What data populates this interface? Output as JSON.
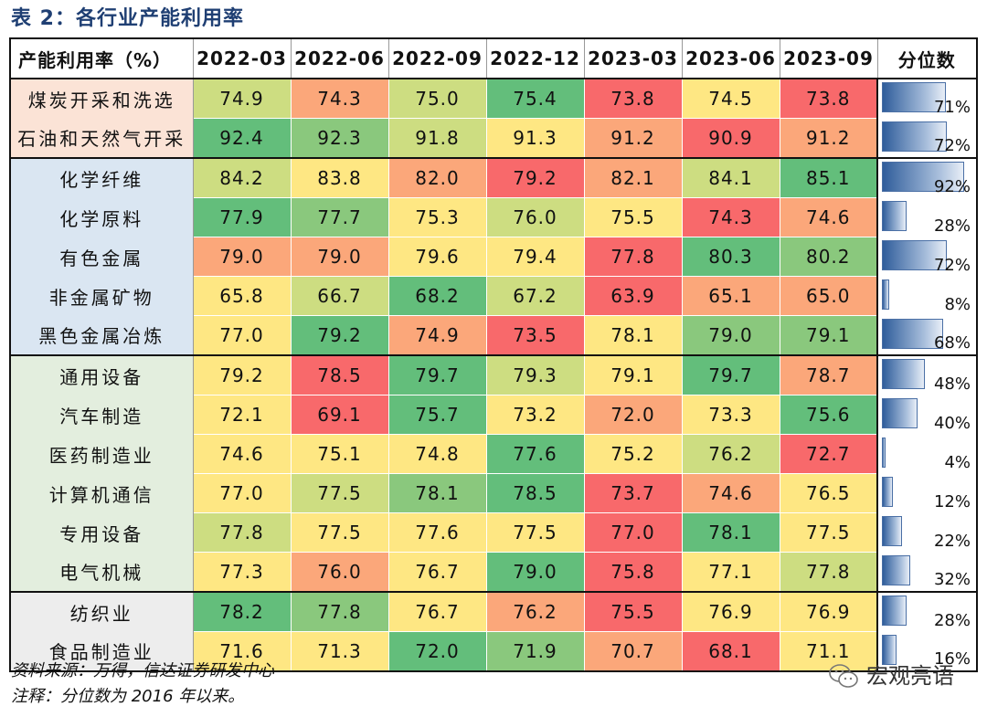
{
  "title": "表 2：各行业产能利用率",
  "header": [
    "产能利用率（%）",
    "2022-03",
    "2022-06",
    "2022-09",
    "2022-12",
    "2023-03",
    "2023-06",
    "2023-09",
    "分位数"
  ],
  "colors": {
    "red": "#f8696b",
    "orange": "#fba77a",
    "yellow": "#fee783",
    "lime": "#cddd81",
    "green": "#8ac87d",
    "dgreen": "#63be7b"
  },
  "groups": [
    {
      "class": "g1",
      "rows": [
        {
          "name": "煤炭开采和洗选",
          "values": [
            "74.9",
            "74.3",
            "75.0",
            "75.4",
            "73.8",
            "74.5",
            "73.8"
          ],
          "colors": [
            "lime",
            "orange",
            "lime",
            "dgreen",
            "red",
            "yellow",
            "red"
          ],
          "pct": "71%",
          "pct_value": 0.71
        },
        {
          "name": "石油和天然气开采",
          "values": [
            "92.4",
            "92.3",
            "91.8",
            "91.3",
            "91.2",
            "90.9",
            "91.2"
          ],
          "colors": [
            "dgreen",
            "green",
            "lime",
            "yellow",
            "orange",
            "red",
            "orange"
          ],
          "pct": "72%",
          "pct_value": 0.72
        }
      ]
    },
    {
      "class": "g2",
      "rows": [
        {
          "name": "化学纤维",
          "values": [
            "84.2",
            "83.8",
            "82.0",
            "79.2",
            "82.1",
            "84.1",
            "85.1"
          ],
          "colors": [
            "lime",
            "yellow",
            "orange",
            "red",
            "orange",
            "lime",
            "dgreen"
          ],
          "pct": "92%",
          "pct_value": 0.92
        },
        {
          "name": "化学原料",
          "values": [
            "77.9",
            "77.7",
            "75.3",
            "76.0",
            "75.5",
            "74.3",
            "74.6"
          ],
          "colors": [
            "dgreen",
            "green",
            "yellow",
            "lime",
            "yellow",
            "red",
            "orange"
          ],
          "pct": "28%",
          "pct_value": 0.28
        },
        {
          "name": "有色金属",
          "values": [
            "79.0",
            "79.0",
            "79.6",
            "79.4",
            "77.8",
            "80.3",
            "80.2"
          ],
          "colors": [
            "orange",
            "orange",
            "yellow",
            "yellow",
            "red",
            "dgreen",
            "green"
          ],
          "pct": "72%",
          "pct_value": 0.72
        },
        {
          "name": "非金属矿物",
          "values": [
            "65.8",
            "66.7",
            "68.2",
            "67.2",
            "63.9",
            "65.1",
            "65.0"
          ],
          "colors": [
            "yellow",
            "lime",
            "dgreen",
            "lime",
            "red",
            "orange",
            "orange"
          ],
          "pct": "8%",
          "pct_value": 0.08
        },
        {
          "name": "黑色金属冶炼",
          "values": [
            "77.0",
            "79.2",
            "74.9",
            "73.5",
            "78.1",
            "79.0",
            "79.1"
          ],
          "colors": [
            "yellow",
            "dgreen",
            "orange",
            "red",
            "yellow",
            "green",
            "green"
          ],
          "pct": "68%",
          "pct_value": 0.68
        }
      ]
    },
    {
      "class": "g3",
      "rows": [
        {
          "name": "通用设备",
          "values": [
            "79.2",
            "78.5",
            "79.7",
            "79.3",
            "79.1",
            "79.7",
            "78.7"
          ],
          "colors": [
            "yellow",
            "red",
            "dgreen",
            "lime",
            "yellow",
            "dgreen",
            "orange"
          ],
          "pct": "48%",
          "pct_value": 0.48
        },
        {
          "name": "汽车制造",
          "values": [
            "72.1",
            "69.1",
            "75.7",
            "73.2",
            "72.0",
            "73.3",
            "75.6"
          ],
          "colors": [
            "yellow",
            "red",
            "dgreen",
            "yellow",
            "orange",
            "yellow",
            "dgreen"
          ],
          "pct": "40%",
          "pct_value": 0.4
        },
        {
          "name": "医药制造业",
          "values": [
            "74.6",
            "75.1",
            "74.8",
            "77.6",
            "75.2",
            "76.2",
            "72.7"
          ],
          "colors": [
            "yellow",
            "yellow",
            "yellow",
            "dgreen",
            "yellow",
            "lime",
            "red"
          ],
          "pct": "4%",
          "pct_value": 0.04
        },
        {
          "name": "计算机通信",
          "values": [
            "77.0",
            "77.5",
            "78.1",
            "78.5",
            "73.7",
            "74.6",
            "76.5"
          ],
          "colors": [
            "yellow",
            "lime",
            "green",
            "dgreen",
            "red",
            "orange",
            "yellow"
          ],
          "pct": "12%",
          "pct_value": 0.12
        },
        {
          "name": "专用设备",
          "values": [
            "77.8",
            "77.5",
            "77.6",
            "77.5",
            "77.0",
            "78.1",
            "77.5"
          ],
          "colors": [
            "lime",
            "yellow",
            "yellow",
            "yellow",
            "red",
            "dgreen",
            "yellow"
          ],
          "pct": "22%",
          "pct_value": 0.22
        },
        {
          "name": "电气机械",
          "values": [
            "77.3",
            "76.0",
            "76.7",
            "79.0",
            "75.8",
            "77.1",
            "77.8"
          ],
          "colors": [
            "yellow",
            "orange",
            "yellow",
            "dgreen",
            "red",
            "yellow",
            "lime"
          ],
          "pct": "32%",
          "pct_value": 0.32
        }
      ]
    },
    {
      "class": "g4",
      "rows": [
        {
          "name": "纺织业",
          "values": [
            "78.2",
            "77.8",
            "76.7",
            "76.2",
            "75.5",
            "76.9",
            "76.9"
          ],
          "colors": [
            "dgreen",
            "green",
            "yellow",
            "orange",
            "red",
            "yellow",
            "yellow"
          ],
          "pct": "28%",
          "pct_value": 0.28
        },
        {
          "name": "食品制造业",
          "values": [
            "71.6",
            "71.3",
            "72.0",
            "71.9",
            "70.7",
            "68.1",
            "71.1"
          ],
          "colors": [
            "yellow",
            "yellow",
            "dgreen",
            "green",
            "orange",
            "red",
            "yellow"
          ],
          "pct": "16%",
          "pct_value": 0.16
        }
      ]
    }
  ],
  "footer": {
    "source": "资料来源：万得，信达证券研发中心",
    "note": "注释：分位数为 2016 年以来。"
  },
  "watermark": "宏观亮语"
}
